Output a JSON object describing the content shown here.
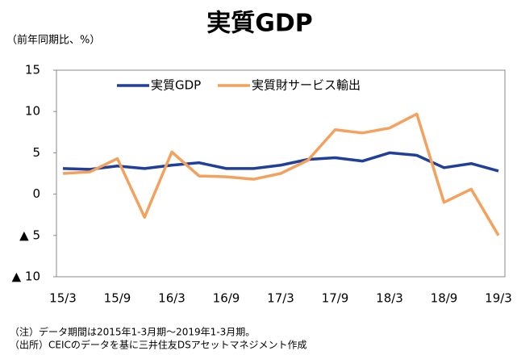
{
  "chart_data": {
    "type": "line",
    "title": "実質GDP",
    "y_label": "（前年同期比、%）",
    "notes": [
      "（注）データ期間は2015年1-3月期～2019年1-3月期。",
      "（出所）CEICのデータを基に三井住友DSアセットマネジメント作成"
    ],
    "categories": [
      "15/3",
      null,
      "15/9",
      null,
      "16/3",
      null,
      "16/9",
      null,
      "17/3",
      null,
      "17/9",
      null,
      "18/3",
      null,
      "18/9",
      null,
      "19/3"
    ],
    "series": [
      {
        "name": "実質GDP",
        "color": "#1f3f99",
        "values": [
          3.1,
          3.0,
          3.4,
          3.1,
          3.5,
          3.8,
          3.1,
          3.1,
          3.5,
          4.2,
          4.4,
          4.0,
          5.0,
          4.7,
          3.2,
          3.7,
          2.8
        ]
      },
      {
        "name": "実質財サービス輸出",
        "color": "#f4a15d",
        "values": [
          2.5,
          2.7,
          4.3,
          -2.8,
          5.1,
          2.2,
          2.1,
          1.8,
          2.5,
          4.1,
          7.8,
          7.4,
          8.0,
          9.7,
          -1.0,
          0.6,
          -5.0
        ]
      }
    ],
    "ylim": [
      -10,
      15
    ],
    "yticks": [
      {
        "value": -10,
        "label": "▲ 10"
      },
      {
        "value": -5,
        "label": "▲ 5"
      },
      0,
      5,
      10,
      15
    ],
    "grid": false,
    "legend": "top"
  }
}
